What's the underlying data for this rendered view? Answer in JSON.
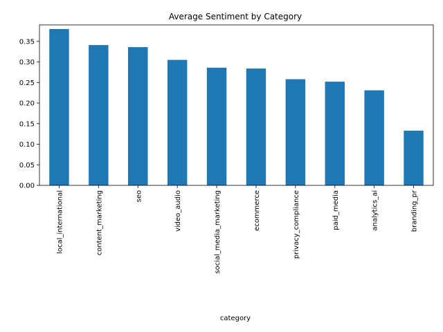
{
  "chart_data": {
    "type": "bar",
    "title": "Average Sentiment by Category",
    "xlabel": "category",
    "ylabel": "",
    "categories": [
      "local_international",
      "content_marketing",
      "seo",
      "video_audio",
      "social_media_marketing",
      "ecommerce",
      "privacy_compliance",
      "paid_media",
      "analytics_ai",
      "branding_pr"
    ],
    "values": [
      0.38,
      0.341,
      0.336,
      0.305,
      0.286,
      0.284,
      0.258,
      0.252,
      0.231,
      0.133
    ],
    "ylim": [
      0,
      0.39
    ],
    "yticks": [
      "0.00",
      "0.05",
      "0.10",
      "0.15",
      "0.20",
      "0.25",
      "0.30",
      "0.35"
    ],
    "bar_color": "#1f77b4",
    "grid": false,
    "legend": "none"
  }
}
